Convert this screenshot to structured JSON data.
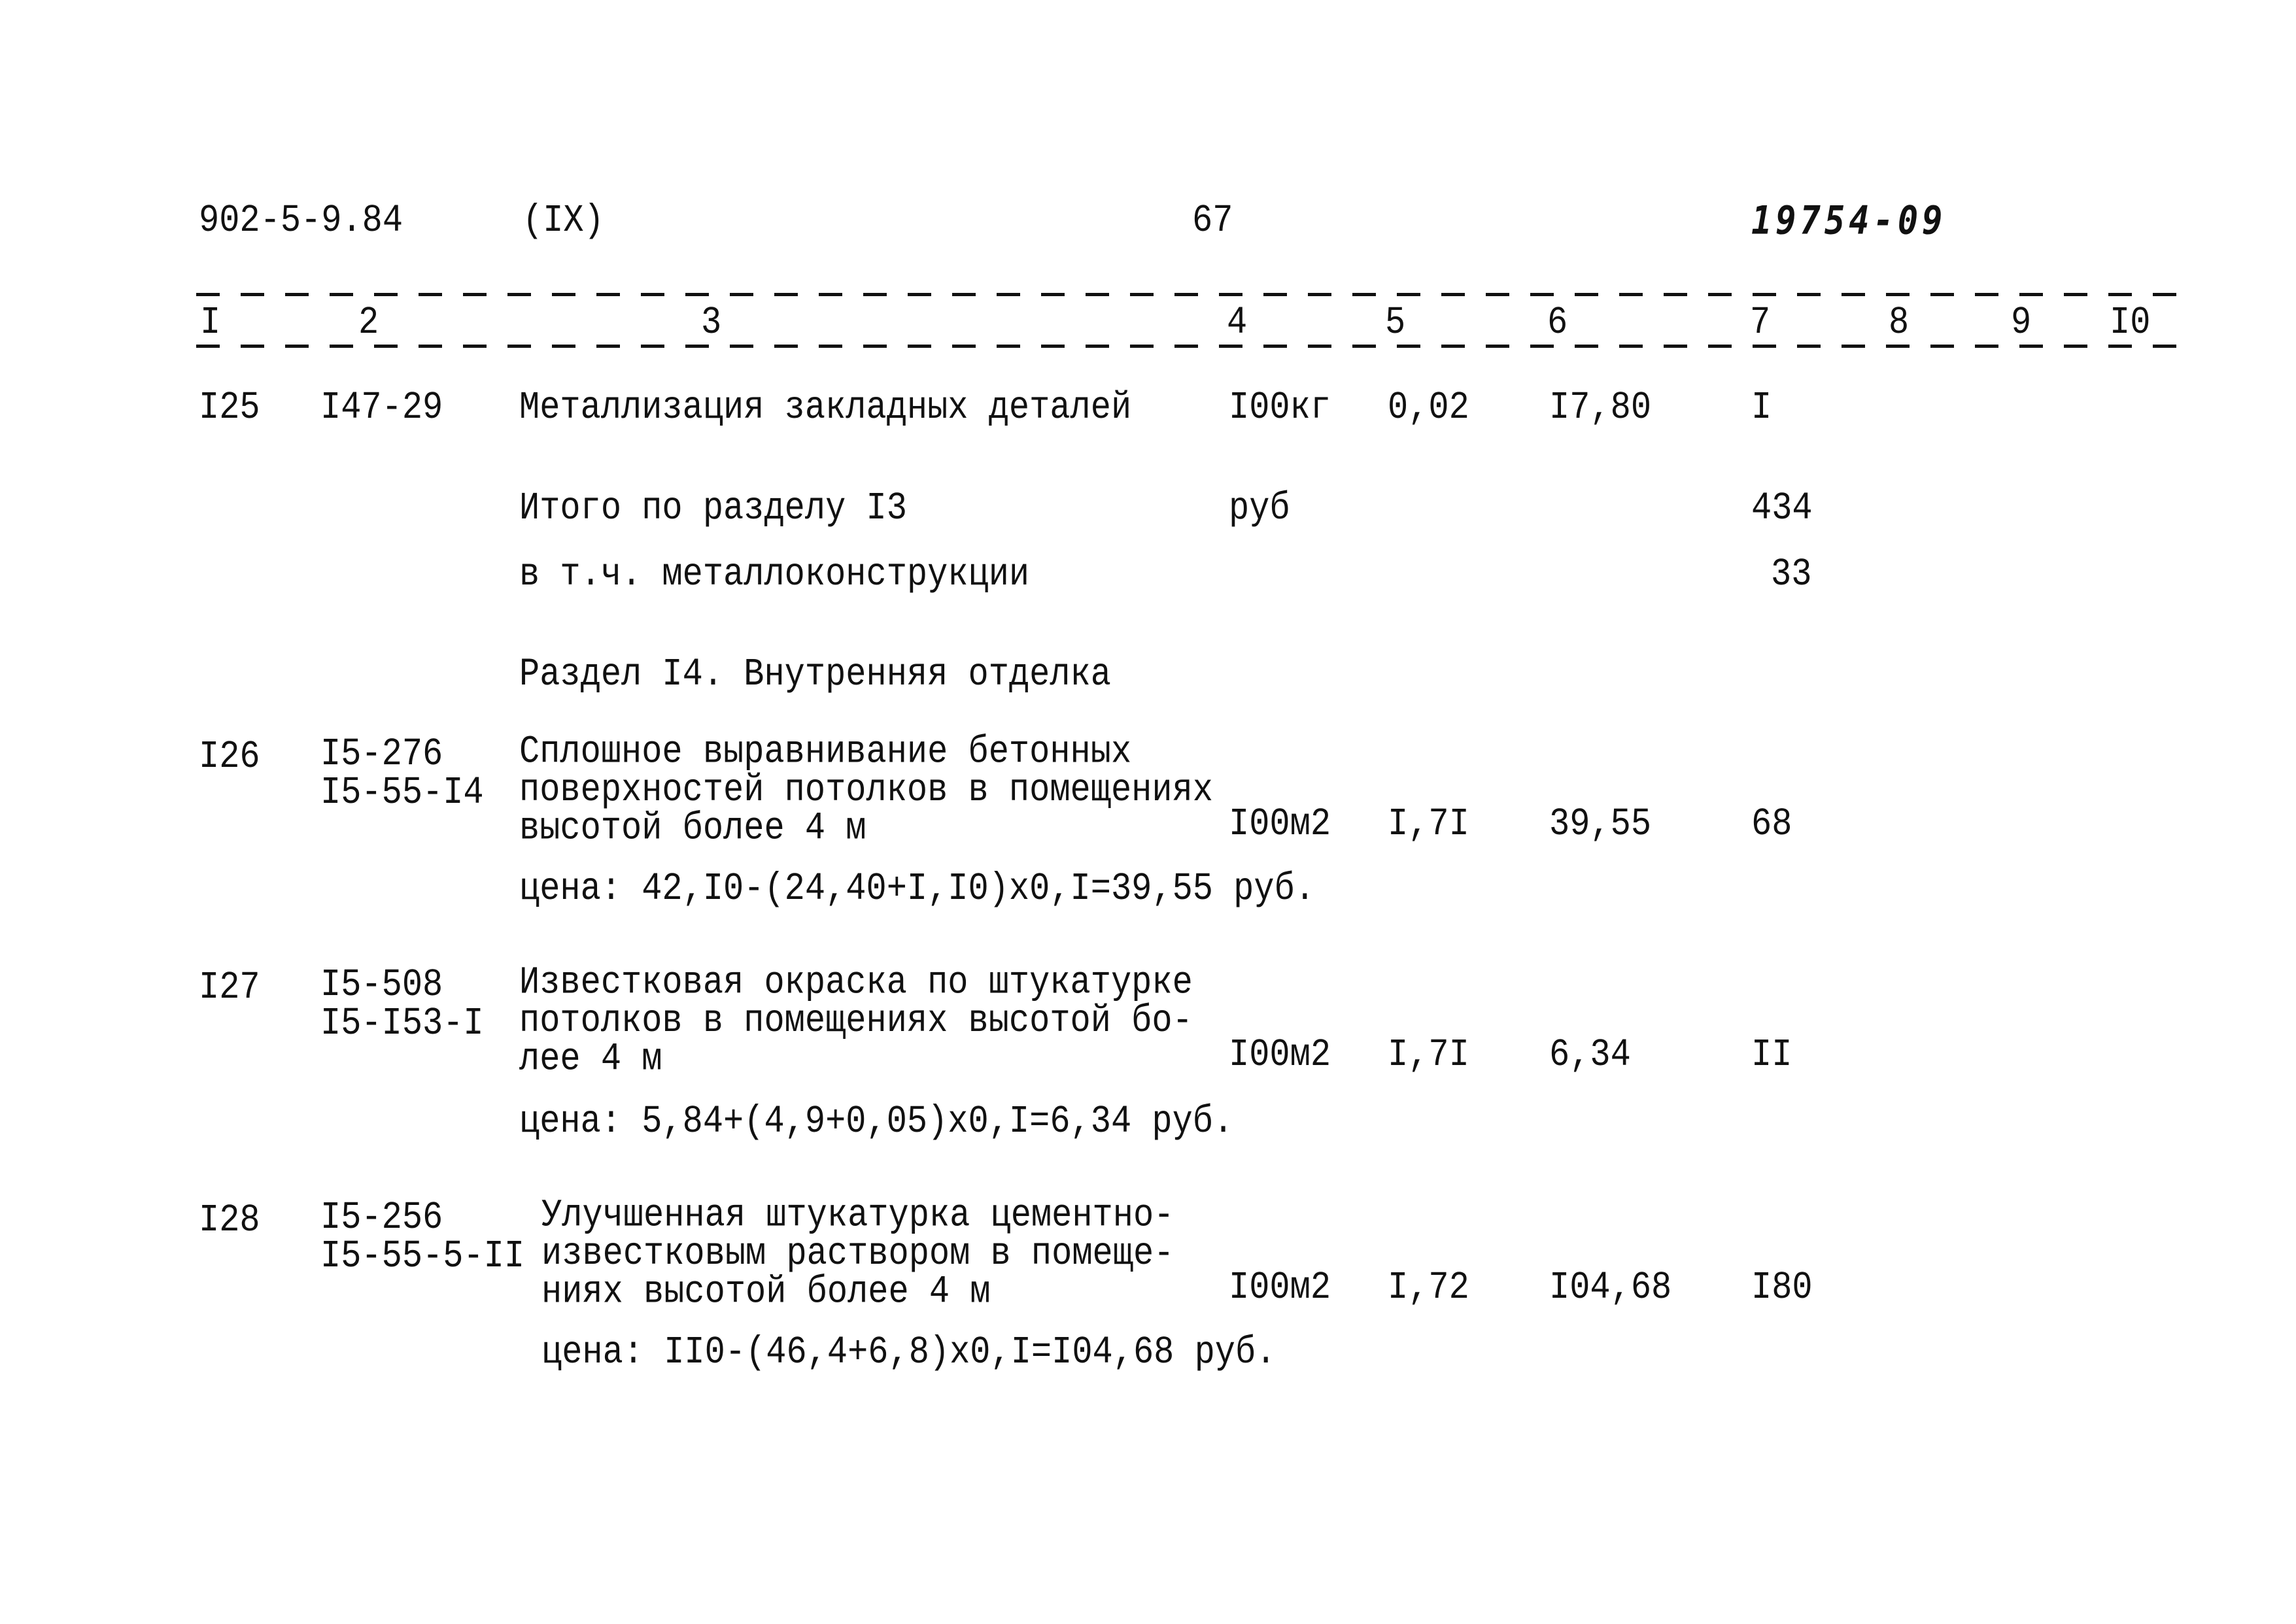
{
  "header": {
    "doc_code": "902-5-9.84",
    "volume": "(IX)",
    "page_number": "67",
    "inventory_number": "19754-09"
  },
  "columns": [
    "I",
    "2",
    "3",
    "4",
    "5",
    "6",
    "7",
    "8",
    "9",
    "I0"
  ],
  "rows": [
    {
      "num": "I25",
      "code": [
        "I47-29"
      ],
      "desc": [
        "Металлизация закладных деталей"
      ],
      "unit": "I00кг",
      "qty": "0,02",
      "price": "I7,80",
      "total": "I"
    },
    {
      "num": "I26",
      "code": [
        "I5-276",
        "I5-55-I4"
      ],
      "desc": [
        "Сплошное выравнивание бетонных",
        "поверхностей потолков в помещениях",
        "высотой более 4 м"
      ],
      "unit": "I00м2",
      "qty": "I,7I",
      "price": "39,55",
      "total": "68",
      "note": "цена: 42,I0-(24,40+I,I0)х0,I=39,55 руб."
    },
    {
      "num": "I27",
      "code": [
        "I5-508",
        "I5-I53-I"
      ],
      "desc": [
        "Известковая окраска по штукатурке",
        "потолков в помещениях высотой бо-",
        "лее 4 м"
      ],
      "unit": "I00м2",
      "qty": "I,7I",
      "price": "6,34",
      "total": "II",
      "note": "цена: 5,84+(4,9+0,05)х0,I=6,34 руб."
    },
    {
      "num": "I28",
      "code": [
        "I5-256",
        "I5-55-5-II"
      ],
      "desc": [
        "Улучшенная штукатурка цементно-",
        "известковым раствором в помеще-",
        "ниях высотой более 4 м"
      ],
      "unit": "I00м2",
      "qty": "I,72",
      "price": "I04,68",
      "total": "I80",
      "note": "цена: II0-(46,4+6,8)х0,I=I04,68 руб."
    }
  ],
  "summary": {
    "total_label": "Итого по разделу I3",
    "total_unit": "руб",
    "total_value": "434",
    "metal_label": "в т.ч. металлоконструкции",
    "metal_value": "33"
  },
  "section_title": "Раздел I4. Внутренняя отделка"
}
